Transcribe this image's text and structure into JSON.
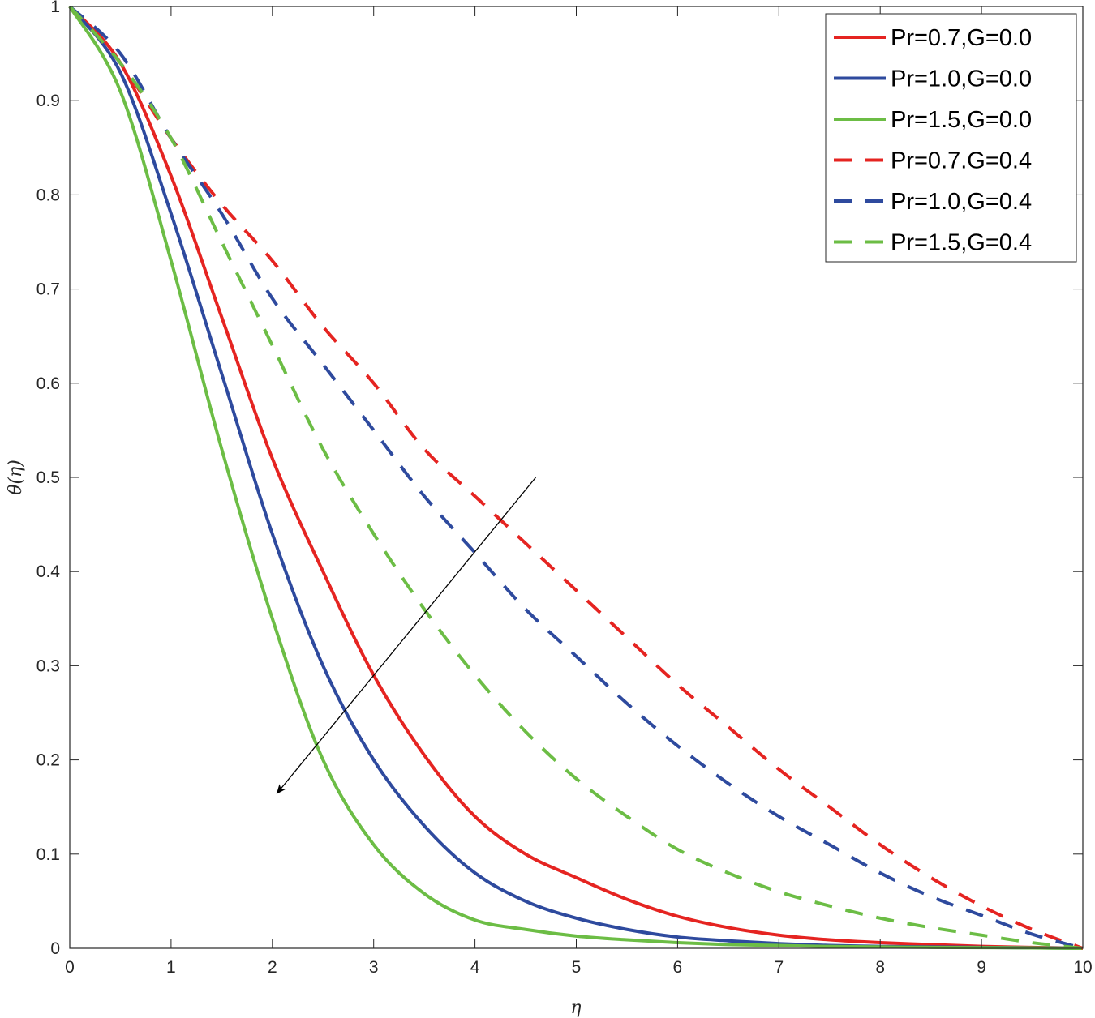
{
  "chart_data": {
    "type": "line",
    "title": "",
    "xlabel": "η",
    "ylabel": "θ(η)",
    "xlim": [
      0,
      10
    ],
    "ylim": [
      0,
      1
    ],
    "xticks": [
      0,
      1,
      2,
      3,
      4,
      5,
      6,
      7,
      8,
      9,
      10
    ],
    "yticks": [
      0,
      0.1,
      0.2,
      0.3,
      0.4,
      0.5,
      0.6,
      0.7,
      0.8,
      0.9,
      1
    ],
    "xtick_labels": [
      "0",
      "1",
      "2",
      "3",
      "4",
      "5",
      "6",
      "7",
      "8",
      "9",
      "10"
    ],
    "ytick_labels": [
      "0",
      "0.1",
      "0.2",
      "0.3",
      "0.4",
      "0.5",
      "0.6",
      "0.7",
      "0.8",
      "0.9",
      "1"
    ],
    "grid": false,
    "legend_position": "top-right",
    "x": [
      0,
      0.5,
      1,
      1.5,
      2,
      2.5,
      3,
      3.5,
      4,
      4.5,
      5,
      5.5,
      6,
      6.5,
      7,
      7.5,
      8,
      8.5,
      9,
      9.5,
      10
    ],
    "series": [
      {
        "name": "Pr=0.7,G=0.0",
        "color": "#e52421",
        "style": "solid",
        "values": [
          1.0,
          0.94,
          0.82,
          0.67,
          0.52,
          0.4,
          0.29,
          0.205,
          0.14,
          0.1,
          0.075,
          0.052,
          0.034,
          0.022,
          0.014,
          0.009,
          0.006,
          0.004,
          0.002,
          0.001,
          0.0
        ]
      },
      {
        "name": "Pr=1.0,G=0.0",
        "color": "#2e4a9e",
        "style": "solid",
        "values": [
          1.0,
          0.93,
          0.78,
          0.61,
          0.44,
          0.3,
          0.2,
          0.13,
          0.08,
          0.05,
          0.032,
          0.02,
          0.012,
          0.008,
          0.005,
          0.003,
          0.002,
          0.0015,
          0.001,
          0.0005,
          0.0
        ]
      },
      {
        "name": "Pr=1.5,G=0.0",
        "color": "#6cbd45",
        "style": "solid",
        "values": [
          1.0,
          0.91,
          0.73,
          0.53,
          0.35,
          0.2,
          0.11,
          0.058,
          0.03,
          0.02,
          0.013,
          0.009,
          0.006,
          0.004,
          0.003,
          0.002,
          0.0015,
          0.001,
          0.0008,
          0.0004,
          0.0
        ]
      },
      {
        "name": "Pr=0.7.G=0.4",
        "color": "#e52421",
        "style": "dashed",
        "values": [
          1.0,
          0.94,
          0.86,
          0.79,
          0.73,
          0.66,
          0.6,
          0.53,
          0.48,
          0.43,
          0.38,
          0.33,
          0.28,
          0.235,
          0.19,
          0.15,
          0.11,
          0.075,
          0.045,
          0.02,
          0.0
        ]
      },
      {
        "name": "Pr=1.0,G=0.4",
        "color": "#2e4a9e",
        "style": "dashed",
        "values": [
          1.0,
          0.95,
          0.86,
          0.78,
          0.69,
          0.62,
          0.55,
          0.48,
          0.42,
          0.36,
          0.31,
          0.26,
          0.215,
          0.175,
          0.14,
          0.11,
          0.08,
          0.055,
          0.035,
          0.015,
          0.0
        ]
      },
      {
        "name": "Pr=1.5,G=0.4",
        "color": "#6cbd45",
        "style": "dashed",
        "values": [
          1.0,
          0.94,
          0.86,
          0.75,
          0.64,
          0.53,
          0.44,
          0.36,
          0.29,
          0.23,
          0.18,
          0.14,
          0.105,
          0.08,
          0.06,
          0.045,
          0.032,
          0.022,
          0.014,
          0.006,
          0.0
        ]
      }
    ],
    "annotations": [
      {
        "type": "arrow",
        "from": [
          4.6,
          0.5
        ],
        "to": [
          2.05,
          0.165
        ],
        "meaning": "increasing Pr"
      }
    ]
  }
}
